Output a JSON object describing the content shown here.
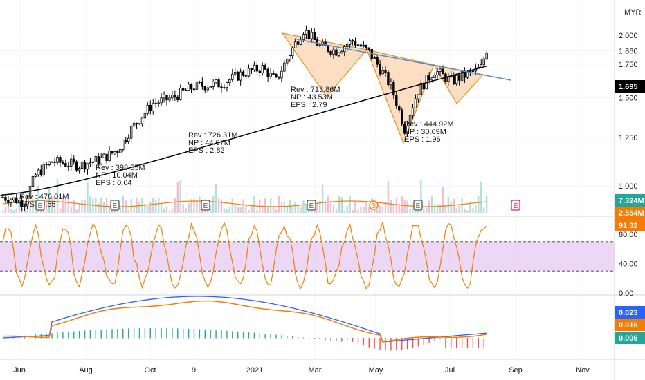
{
  "currency": "MYR",
  "colors": {
    "up": "#26a69a",
    "down": "#ef5350",
    "candle": "#000000",
    "ma": "#000000",
    "volume_ma": "#f57c00",
    "triangle_fill": "#fcd9b8",
    "triangle_line": "#f57c00",
    "trend_line": "#2962ff",
    "stoch": "#f57c00",
    "stoch_band": "#e1bee7",
    "macd": "#2962ff",
    "signal": "#f57c00"
  },
  "chart_data": [
    {
      "type": "line",
      "name": "price",
      "x_ticks": [
        "Jun",
        "Aug",
        "Oct",
        "9",
        "2021",
        "Mar",
        "May",
        "Jul",
        "Sep",
        "Nov"
      ],
      "y_ticks": [
        "2.000",
        "1.860",
        "1.750",
        "1.500",
        "1.250",
        "1.000"
      ],
      "y_scale": "log",
      "ylim": [
        0.87,
        2.35
      ],
      "price_label": "1.695",
      "volume_labels": [
        "7.324M",
        "2.554M"
      ],
      "earnings": [
        {
          "lines": [
            "Rev : 476.01M",
            "EPS : 0.55"
          ]
        },
        {
          "lines": [
            "Rev : 398.55M",
            "NP : 10.04M",
            "EPS : 0.64"
          ]
        },
        {
          "lines": [
            "Rev : 726.31M",
            "NP : 44.07M",
            "EPS : 2.82"
          ]
        },
        {
          "lines": [
            "Rev : 713.86M",
            "NP : 43.53M",
            "EPS : 2.79"
          ]
        },
        {
          "lines": [
            "Rev : 444.92M",
            "NP : 30.69M",
            "EPS : 1.96"
          ]
        }
      ],
      "event_markers": [
        "E",
        "E",
        "E",
        "E",
        "S",
        "E",
        "E"
      ]
    },
    {
      "type": "line",
      "name": "stochastic",
      "y_ticks": [
        "80.00",
        "40.00",
        "0.00"
      ],
      "ylim": [
        0,
        100
      ],
      "band": [
        30,
        70
      ],
      "value_label": "91.32"
    },
    {
      "type": "line",
      "name": "macd",
      "value_labels": [
        "0.023",
        "0.016",
        "0.006"
      ]
    }
  ]
}
